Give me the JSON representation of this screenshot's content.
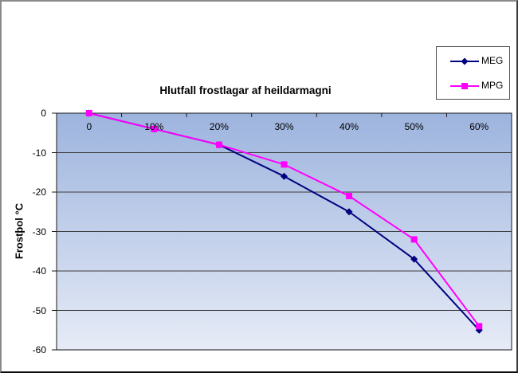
{
  "window": {
    "background": "#ffffff",
    "frame_border_color": "#8a8a8a"
  },
  "chart_data": {
    "type": "line",
    "title": "Hlutfall frostlagar af heildarmagni",
    "xlabel": "",
    "ylabel": "Frostþol °C",
    "categories": [
      "0",
      "10%",
      "20%",
      "30%",
      "40%",
      "50%",
      "60%"
    ],
    "series": [
      {
        "name": "MEG",
        "color": "#000080",
        "marker": "diamond",
        "values": [
          0,
          -4,
          -8,
          -16,
          -25,
          -37,
          -55
        ]
      },
      {
        "name": "MPG",
        "color": "#FF00FF",
        "marker": "square",
        "values": [
          0,
          -4,
          -8,
          -13,
          -21,
          -32,
          -54
        ]
      }
    ],
    "ylim": [
      -60,
      0
    ],
    "ytick_labels": [
      "0",
      "-10",
      "-20",
      "-30",
      "-40",
      "-50",
      "-60"
    ],
    "grid": true,
    "legend_position": "top-right",
    "plot_bg_gradient": {
      "top": "#9db4de",
      "bottom": "#e6ebf6"
    },
    "gridline_color": "#3c3c3c",
    "axis_color": "#1a1a1a"
  }
}
